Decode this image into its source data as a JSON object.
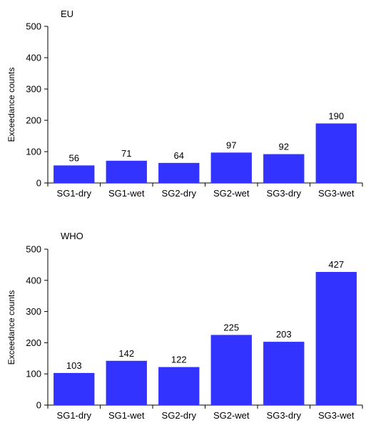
{
  "colors": {
    "bar": "#3333ff",
    "axis": "#000000"
  },
  "chart_data": [
    {
      "type": "bar",
      "title": "EU",
      "ylabel": "Exceedance counts",
      "xlabel": "",
      "categories": [
        "SG1-dry",
        "SG1-wet",
        "SG2-dry",
        "SG2-wet",
        "SG3-dry",
        "SG3-wet"
      ],
      "values": [
        56,
        71,
        64,
        97,
        92,
        190
      ],
      "data_labels": [
        "56",
        "71",
        "64",
        "97",
        "92",
        "190"
      ],
      "ylim": [
        0,
        500
      ],
      "yticks": [
        0,
        100,
        200,
        300,
        400,
        500
      ],
      "grid": false,
      "legend": "none"
    },
    {
      "type": "bar",
      "title": "WHO",
      "ylabel": "Exceedance counts",
      "xlabel": "",
      "categories": [
        "SG1-dry",
        "SG1-wet",
        "SG2-dry",
        "SG2-wet",
        "SG3-dry",
        "SG3-wet"
      ],
      "values": [
        103,
        142,
        122,
        225,
        203,
        427
      ],
      "data_labels": [
        "103",
        "142",
        "122",
        "225",
        "203",
        "427"
      ],
      "ylim": [
        0,
        500
      ],
      "yticks": [
        0,
        100,
        200,
        300,
        400,
        500
      ],
      "grid": false,
      "legend": "none"
    }
  ]
}
